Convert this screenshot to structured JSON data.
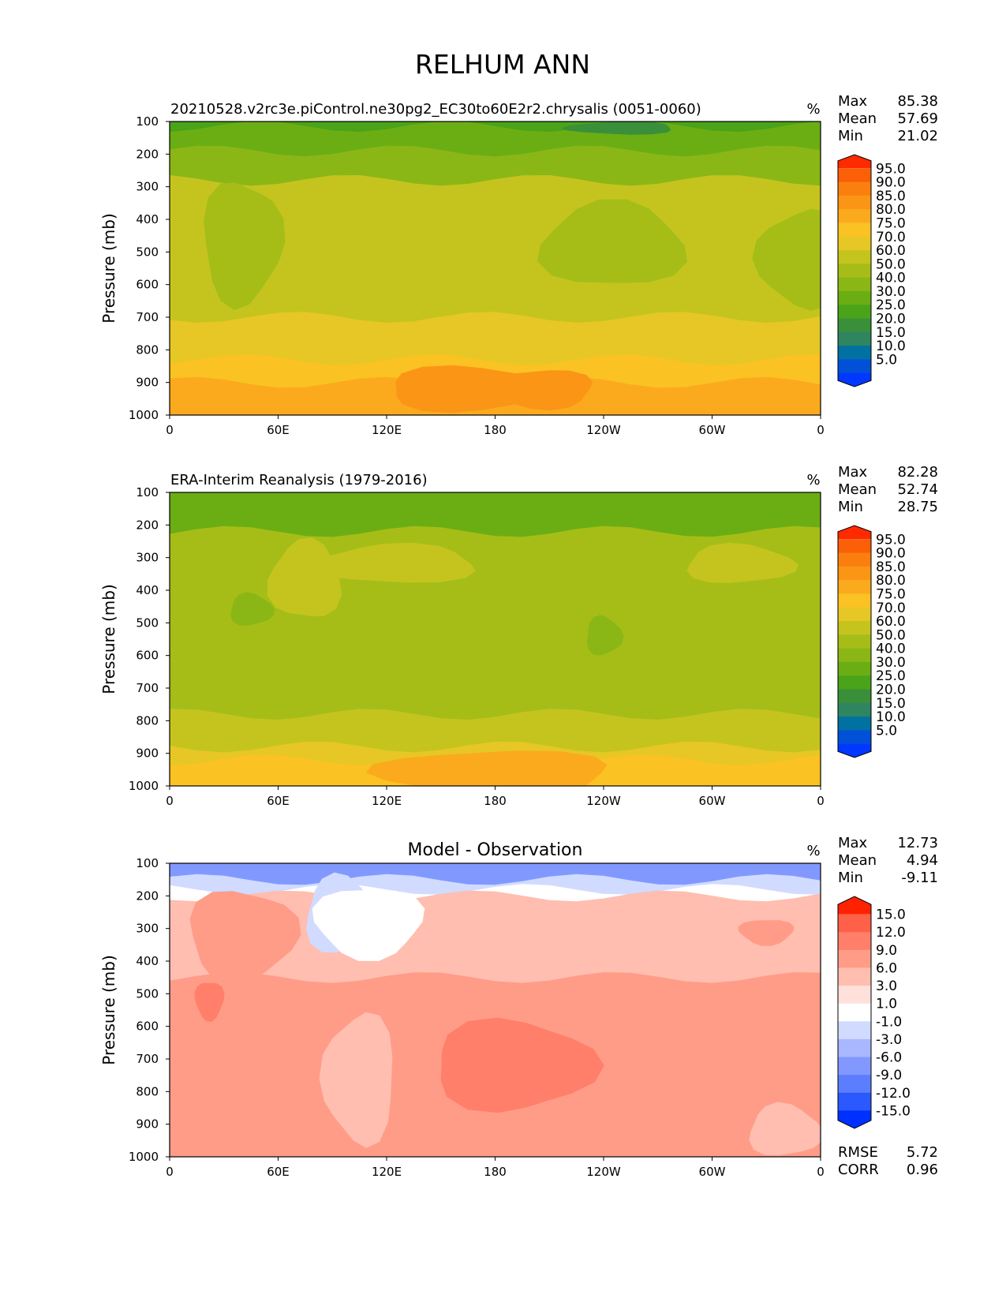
{
  "title": "RELHUM ANN",
  "colors": {
    "rh_levels": [
      "#0038ff",
      "#0051d8",
      "#0071a0",
      "#2f8560",
      "#3a8f3a",
      "#4aa318",
      "#6bae14",
      "#8bb716",
      "#a6bd18",
      "#c5c41f",
      "#e6c725",
      "#fac223",
      "#fbaa1e",
      "#fb9516",
      "#fb7f0e",
      "#fb5f08",
      "#ff2a00"
    ],
    "diff_levels": [
      "#0030ff",
      "#2b59ff",
      "#5b7eff",
      "#8199ff",
      "#a8b7ff",
      "#d0dbff",
      "#ffffff",
      "#ffe0da",
      "#ffbeb0",
      "#ff9c88",
      "#ff7f6a",
      "#ff6048",
      "#ff2200"
    ]
  },
  "chart_data": [
    {
      "type": "contour",
      "panel": "model",
      "title_left": "20210528.v2rc3e.piControl.ne30pg2_EC30to60E2r2.chrysalis (0051-0060)",
      "units": "%",
      "ylabel": "Pressure (mb)",
      "xticks": [
        "0",
        "60E",
        "120E",
        "180",
        "120W",
        "60W",
        "0"
      ],
      "yticks": [
        "100",
        "200",
        "300",
        "400",
        "500",
        "600",
        "700",
        "800",
        "900",
        "1000"
      ],
      "xlim": [
        0,
        360
      ],
      "ylim": [
        100,
        1000
      ],
      "stats": [
        {
          "label": "Max",
          "value": "85.38"
        },
        {
          "label": "Mean",
          "value": "57.69"
        },
        {
          "label": "Min",
          "value": "21.02"
        }
      ],
      "colorbar_labels": [
        "95.0",
        "90.0",
        "85.0",
        "80.0",
        "75.0",
        "70.0",
        "60.0",
        "50.0",
        "40.0",
        "30.0",
        "25.0",
        "20.0",
        "15.0",
        "10.0",
        "5.0"
      ],
      "bands": [
        {
          "level": 5,
          "top": 100,
          "bottom": 115
        },
        {
          "level": 6,
          "top": 115,
          "bottom": 190
        },
        {
          "level": 7,
          "top": 190,
          "bottom": 280
        },
        {
          "level": 9,
          "top": 280,
          "bottom": 700
        },
        {
          "level": 10,
          "top": 700,
          "bottom": 830
        },
        {
          "level": 11,
          "top": 830,
          "bottom": 900
        },
        {
          "level": 12,
          "top": 900,
          "bottom": 1000
        }
      ],
      "blobs": [
        {
          "level": 8,
          "lon": 40,
          "p": 470,
          "rlon": 22,
          "rp": 190
        },
        {
          "level": 8,
          "lon": 245,
          "p": 480,
          "rlon": 40,
          "rp": 130
        },
        {
          "level": 8,
          "lon": 350,
          "p": 520,
          "rlon": 25,
          "rp": 150
        },
        {
          "level": 4,
          "lon": 250,
          "p": 120,
          "rlon": 30,
          "rp": 20
        },
        {
          "level": 13,
          "lon": 165,
          "p": 920,
          "rlon": 45,
          "rp": 70
        },
        {
          "level": 13,
          "lon": 205,
          "p": 920,
          "rlon": 30,
          "rp": 60
        }
      ]
    },
    {
      "type": "contour",
      "panel": "obs",
      "title_left": "ERA-Interim Reanalysis (1979-2016)",
      "units": "%",
      "ylabel": "Pressure (mb)",
      "xticks": [
        "0",
        "60E",
        "120E",
        "180",
        "120W",
        "60W",
        "0"
      ],
      "yticks": [
        "100",
        "200",
        "300",
        "400",
        "500",
        "600",
        "700",
        "800",
        "900",
        "1000"
      ],
      "xlim": [
        0,
        360
      ],
      "ylim": [
        100,
        1000
      ],
      "stats": [
        {
          "label": "Max",
          "value": "82.28"
        },
        {
          "label": "Mean",
          "value": "52.74"
        },
        {
          "label": "Min",
          "value": "28.75"
        }
      ],
      "colorbar_labels": [
        "95.0",
        "90.0",
        "85.0",
        "80.0",
        "75.0",
        "70.0",
        "60.0",
        "50.0",
        "40.0",
        "30.0",
        "25.0",
        "20.0",
        "15.0",
        "10.0",
        "5.0"
      ],
      "bands": [
        {
          "level": 6,
          "top": 100,
          "bottom": 220
        },
        {
          "level": 8,
          "top": 220,
          "bottom": 780
        },
        {
          "level": 9,
          "top": 780,
          "bottom": 880
        },
        {
          "level": 10,
          "top": 880,
          "bottom": 920
        },
        {
          "level": 11,
          "top": 920,
          "bottom": 1000
        }
      ],
      "blobs": [
        {
          "level": 9,
          "lon": 75,
          "p": 370,
          "rlon": 20,
          "rp": 120
        },
        {
          "level": 9,
          "lon": 125,
          "p": 320,
          "rlon": 45,
          "rp": 60
        },
        {
          "level": 9,
          "lon": 315,
          "p": 320,
          "rlon": 30,
          "rp": 60
        },
        {
          "level": 7,
          "lon": 45,
          "p": 460,
          "rlon": 12,
          "rp": 50
        },
        {
          "level": 7,
          "lon": 240,
          "p": 540,
          "rlon": 10,
          "rp": 60
        },
        {
          "level": 12,
          "lon": 180,
          "p": 960,
          "rlon": 65,
          "rp": 70
        }
      ]
    },
    {
      "type": "contour",
      "panel": "diff",
      "title_center": "Model - Observation",
      "units": "%",
      "ylabel": "Pressure (mb)",
      "xticks": [
        "0",
        "60E",
        "120E",
        "180",
        "120W",
        "60W",
        "0"
      ],
      "yticks": [
        "100",
        "200",
        "300",
        "400",
        "500",
        "600",
        "700",
        "800",
        "900",
        "1000"
      ],
      "xlim": [
        0,
        360
      ],
      "ylim": [
        100,
        1000
      ],
      "stats": [
        {
          "label": "Max",
          "value": "12.73"
        },
        {
          "label": "Mean",
          "value": "4.94"
        },
        {
          "label": "Min",
          "value": "-9.11"
        }
      ],
      "colorbar_labels": [
        "15.0",
        "12.0",
        "9.0",
        "6.0",
        "3.0",
        "1.0",
        "-1.0",
        "-3.0",
        "-6.0",
        "-9.0",
        "-12.0",
        "-15.0"
      ],
      "metrics": [
        {
          "label": "RMSE",
          "value": "5.72"
        },
        {
          "label": "CORR",
          "value": "0.96"
        }
      ],
      "bands": [
        {
          "level": 3,
          "top": 100,
          "bottom": 150
        },
        {
          "level": 5,
          "top": 150,
          "bottom": 180
        },
        {
          "level": 6,
          "top": 180,
          "bottom": 200
        },
        {
          "level": 8,
          "top": 200,
          "bottom": 450
        },
        {
          "level": 9,
          "top": 450,
          "bottom": 1000
        }
      ],
      "blobs": [
        {
          "level": 9,
          "lon": 40,
          "p": 320,
          "rlon": 30,
          "rp": 140
        },
        {
          "level": 10,
          "lon": 22,
          "p": 520,
          "rlon": 8,
          "rp": 60
        },
        {
          "level": 5,
          "lon": 95,
          "p": 260,
          "rlon": 20,
          "rp": 120
        },
        {
          "level": 6,
          "lon": 110,
          "p": 280,
          "rlon": 30,
          "rp": 110
        },
        {
          "level": 10,
          "lon": 190,
          "p": 720,
          "rlon": 45,
          "rp": 140
        },
        {
          "level": 8,
          "lon": 105,
          "p": 760,
          "rlon": 20,
          "rp": 200
        },
        {
          "level": 8,
          "lon": 340,
          "p": 920,
          "rlon": 20,
          "rp": 80
        },
        {
          "level": 9,
          "lon": 330,
          "p": 310,
          "rlon": 15,
          "rp": 40
        }
      ]
    }
  ]
}
